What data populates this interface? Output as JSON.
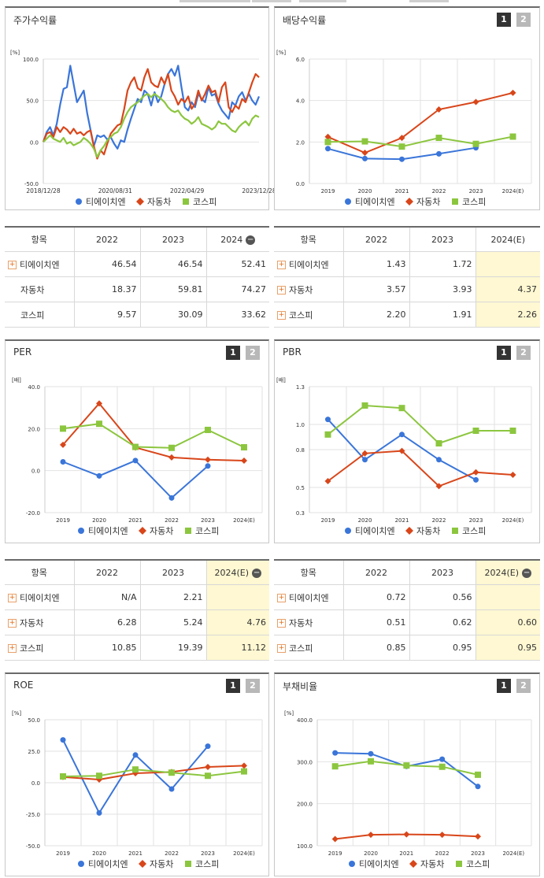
{
  "colors": {
    "series1": "#3a75d9",
    "series2": "#d8461a",
    "series3": "#8cc63f"
  },
  "legend": [
    "티에이치엔",
    "자동차",
    "코스피"
  ],
  "years": [
    "2019",
    "2020",
    "2021",
    "2022",
    "2023",
    "2024(E)"
  ],
  "panels": {
    "stock": {
      "title": "주가수익률"
    },
    "dividend": {
      "title": "배당수익률",
      "badge1": "1",
      "badge2": "2"
    },
    "per": {
      "title": "PER",
      "badge1": "1",
      "badge2": "2"
    },
    "pbr": {
      "title": "PBR",
      "badge1": "1",
      "badge2": "2"
    },
    "roe": {
      "title": "ROE",
      "badge1": "1",
      "badge2": "2"
    },
    "debt": {
      "title": "부채비율",
      "badge1": "1",
      "badge2": "2"
    }
  },
  "tables": {
    "stock": {
      "header": [
        "항목",
        "2022",
        "2023",
        "2024"
      ],
      "rows": [
        {
          "name": "티에이치엔",
          "v": [
            "46.54",
            "46.54",
            "52.41"
          ],
          "plus": true
        },
        {
          "name": "자동차",
          "v": [
            "18.37",
            "59.81",
            "74.27"
          ],
          "plus": false
        },
        {
          "name": "코스피",
          "v": [
            "9.57",
            "30.09",
            "33.62"
          ],
          "plus": false
        }
      ]
    },
    "dividend": {
      "header": [
        "항목",
        "2022",
        "2023",
        "2024(E)"
      ],
      "rows": [
        {
          "name": "티에이치엔",
          "v": [
            "1.43",
            "1.72",
            ""
          ],
          "plus": true
        },
        {
          "name": "자동차",
          "v": [
            "3.57",
            "3.93",
            "4.37"
          ],
          "plus": true
        },
        {
          "name": "코스피",
          "v": [
            "2.20",
            "1.91",
            "2.26"
          ],
          "plus": true
        }
      ]
    },
    "per": {
      "header": [
        "항목",
        "2022",
        "2023",
        "2024(E)"
      ],
      "rows": [
        {
          "name": "티에이치엔",
          "v": [
            "N/A",
            "2.21",
            ""
          ],
          "plus": true
        },
        {
          "name": "자동차",
          "v": [
            "6.28",
            "5.24",
            "4.76"
          ],
          "plus": true
        },
        {
          "name": "코스피",
          "v": [
            "10.85",
            "19.39",
            "11.12"
          ],
          "plus": true
        }
      ]
    },
    "pbr": {
      "header": [
        "항목",
        "2022",
        "2023",
        "2024(E)"
      ],
      "rows": [
        {
          "name": "티에이치엔",
          "v": [
            "0.72",
            "0.56",
            ""
          ],
          "plus": true
        },
        {
          "name": "자동차",
          "v": [
            "0.51",
            "0.62",
            "0.60"
          ],
          "plus": true
        },
        {
          "name": "코스피",
          "v": [
            "0.85",
            "0.95",
            "0.95"
          ],
          "plus": true
        }
      ]
    }
  },
  "chart_data": [
    {
      "id": "stock",
      "type": "line",
      "ylabel": "[%]",
      "yticks": [
        -50,
        0,
        50,
        100
      ],
      "ytick_labels": [
        "-50.0",
        "0.0",
        "50.0",
        "100.0"
      ],
      "ylim": [
        -50,
        100
      ],
      "xtick_labels": [
        "2018/12/28",
        "2020/08/31",
        "2022/04/29",
        "2023/12/28"
      ],
      "series": [
        {
          "name": "티에이치엔",
          "values": [
            0,
            12,
            18,
            8,
            22,
            45,
            64,
            66,
            92,
            70,
            48,
            55,
            62,
            35,
            15,
            -5,
            8,
            6,
            8,
            3,
            6,
            -2,
            -8,
            2,
            0,
            15,
            28,
            40,
            52,
            48,
            62,
            58,
            44,
            60,
            48,
            55,
            70,
            82,
            88,
            80,
            92,
            66,
            42,
            38,
            48,
            42,
            58,
            52,
            48,
            66,
            56,
            58,
            46,
            38,
            33,
            28,
            48,
            44,
            55,
            60,
            50,
            58,
            50,
            45,
            55
          ]
        },
        {
          "name": "자동차",
          "values": [
            0,
            10,
            12,
            6,
            18,
            12,
            18,
            15,
            10,
            16,
            10,
            12,
            8,
            12,
            14,
            -5,
            -20,
            -10,
            -15,
            -2,
            10,
            15,
            20,
            22,
            40,
            62,
            72,
            78,
            65,
            62,
            78,
            88,
            72,
            68,
            66,
            78,
            70,
            82,
            62,
            55,
            45,
            52,
            48,
            55,
            40,
            46,
            62,
            50,
            58,
            68,
            60,
            62,
            48,
            66,
            72,
            42,
            36,
            44,
            40,
            52,
            48,
            60,
            72,
            82,
            78
          ]
        },
        {
          "name": "코스피",
          "values": [
            0,
            4,
            8,
            4,
            2,
            0,
            5,
            -2,
            0,
            -4,
            -2,
            0,
            5,
            2,
            -2,
            -8,
            -18,
            -10,
            -5,
            2,
            6,
            10,
            12,
            18,
            28,
            36,
            42,
            45,
            48,
            52,
            56,
            58,
            54,
            58,
            55,
            52,
            48,
            42,
            38,
            36,
            38,
            32,
            28,
            26,
            22,
            25,
            30,
            22,
            20,
            18,
            15,
            18,
            25,
            22,
            22,
            18,
            14,
            12,
            18,
            22,
            25,
            20,
            28,
            32,
            30
          ]
        }
      ]
    },
    {
      "id": "dividend",
      "type": "line",
      "ylabel": "[%]",
      "yticks": [
        0,
        2,
        4,
        6
      ],
      "ytick_labels": [
        "0.0",
        "2.0",
        "4.0",
        "6.0"
      ],
      "ylim": [
        0,
        6
      ],
      "categories": [
        "2019",
        "2020",
        "2021",
        "2022",
        "2023",
        "2024(E)"
      ],
      "series": [
        {
          "name": "티에이치엔",
          "values": [
            1.68,
            1.2,
            1.17,
            1.43,
            1.72,
            null
          ]
        },
        {
          "name": "자동차",
          "values": [
            2.25,
            1.48,
            2.2,
            3.57,
            3.93,
            4.37
          ]
        },
        {
          "name": "코스피",
          "values": [
            2.0,
            2.03,
            1.78,
            2.2,
            1.91,
            2.26
          ]
        }
      ]
    },
    {
      "id": "per",
      "type": "line",
      "ylabel": "[배]",
      "yticks": [
        -20,
        0,
        20,
        40
      ],
      "ytick_labels": [
        "-20.0",
        "0.0",
        "20.0",
        "40.0"
      ],
      "ylim": [
        -20,
        40
      ],
      "categories": [
        "2019",
        "2020",
        "2021",
        "2022",
        "2023",
        "2024(E)"
      ],
      "series": [
        {
          "name": "티에이치엔",
          "values": [
            4.2,
            -2.5,
            4.8,
            -13.0,
            2.21,
            null
          ]
        },
        {
          "name": "자동차",
          "values": [
            12.3,
            32.0,
            11.0,
            6.28,
            5.24,
            4.76
          ]
        },
        {
          "name": "코스피",
          "values": [
            20.0,
            22.3,
            11.3,
            10.85,
            19.39,
            11.12
          ]
        }
      ]
    },
    {
      "id": "pbr",
      "type": "line",
      "ylabel": "[배]",
      "yticks": [
        0.3,
        0.5,
        0.8,
        1.0,
        1.3
      ],
      "ytick_labels": [
        "0.3",
        "0.5",
        "0.8",
        "1.0",
        "1.3"
      ],
      "ylim": [
        0.3,
        1.3
      ],
      "categories": [
        "2019",
        "2020",
        "2021",
        "2022",
        "2023",
        "2024(E)"
      ],
      "series": [
        {
          "name": "티에이치엔",
          "values": [
            1.04,
            0.72,
            0.92,
            0.72,
            0.56,
            null
          ]
        },
        {
          "name": "자동차",
          "values": [
            0.55,
            0.77,
            0.79,
            0.51,
            0.62,
            0.6
          ]
        },
        {
          "name": "코스피",
          "values": [
            0.92,
            1.15,
            1.13,
            0.85,
            0.95,
            0.95
          ]
        }
      ]
    },
    {
      "id": "roe",
      "type": "line",
      "ylabel": "[%]",
      "yticks": [
        -50,
        -25,
        0,
        25,
        50
      ],
      "ytick_labels": [
        "-50.0",
        "-25.0",
        "0.0",
        "25.0",
        "50.0"
      ],
      "ylim": [
        -50,
        50
      ],
      "categories": [
        "2019",
        "2020",
        "2021",
        "2022",
        "2023",
        "2024(E)"
      ],
      "series": [
        {
          "name": "티에이치엔",
          "values": [
            34.0,
            -24.0,
            22.0,
            -5.0,
            29.0,
            null
          ]
        },
        {
          "name": "자동차",
          "values": [
            4.5,
            2.5,
            7.5,
            8.5,
            12.5,
            13.5
          ]
        },
        {
          "name": "코스피",
          "values": [
            5.0,
            5.5,
            10.5,
            8.0,
            5.5,
            9.0
          ]
        }
      ]
    },
    {
      "id": "debt",
      "type": "line",
      "ylabel": "[%]",
      "yticks": [
        100,
        200,
        300,
        400
      ],
      "ytick_labels": [
        "100.0",
        "200.0",
        "300.0",
        "400.0"
      ],
      "ylim": [
        100,
        400
      ],
      "categories": [
        "2019",
        "2020",
        "2021",
        "2022",
        "2023",
        "2024(E)"
      ],
      "series": [
        {
          "name": "티에이치엔",
          "values": [
            321,
            319,
            289,
            306,
            241,
            null
          ]
        },
        {
          "name": "자동차",
          "values": [
            116,
            126,
            127,
            126,
            122,
            null
          ]
        },
        {
          "name": "코스피",
          "values": [
            289,
            301,
            291,
            288,
            269,
            null
          ]
        }
      ]
    }
  ]
}
